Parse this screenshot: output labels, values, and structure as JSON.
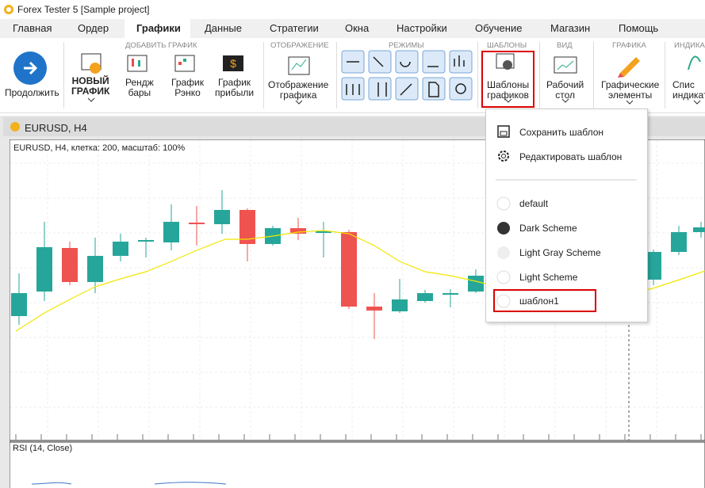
{
  "window": {
    "title": "Forex Tester 5  [Sample project]"
  },
  "menu": {
    "tabs": [
      "Главная",
      "Ордер",
      "Графики",
      "Данные",
      "Стратегии",
      "Окна",
      "Настройки",
      "Обучение",
      "Магазин",
      "Помощь"
    ]
  },
  "ribbon": {
    "continue": "Продолжить",
    "groups": [
      {
        "title": "ДОБАВИТЬ ГРАФИК",
        "buttons": [
          [
            "НОВЫЙ",
            "ГРАФИК"
          ],
          [
            "Рендж",
            "бары"
          ],
          [
            "График",
            "Рэнко"
          ],
          [
            "График",
            "прибыли"
          ]
        ]
      },
      {
        "title": "ОТОБРАЖЕНИЕ",
        "buttons": [
          [
            "Отображение",
            "графика"
          ]
        ]
      },
      {
        "title": "РЕЖИМЫ"
      },
      {
        "title": "ШАБЛОНЫ",
        "buttons": [
          [
            "Шаблоны",
            "графиков"
          ]
        ]
      },
      {
        "title": "ВИД",
        "buttons": [
          [
            "Рабочий",
            "стол"
          ]
        ]
      },
      {
        "title": "ГРАФИКА",
        "buttons": [
          [
            "Графические",
            "элементы"
          ]
        ]
      },
      {
        "title": "ИНДИКА",
        "buttons": [
          [
            "Спис",
            "индикат"
          ]
        ]
      }
    ]
  },
  "chart": {
    "tab": "EURUSD, H4",
    "info": "EURUSD, H4, клетка: 200, масштаб: 100%",
    "subpanel": "RSI (14, Close)"
  },
  "dropdown": {
    "actions": [
      "Сохранить шаблон",
      "Редактировать шаблон"
    ],
    "templates": [
      "default",
      "Dark Scheme",
      "Light Gray Scheme",
      "Light Scheme",
      "шаблон1"
    ]
  }
}
